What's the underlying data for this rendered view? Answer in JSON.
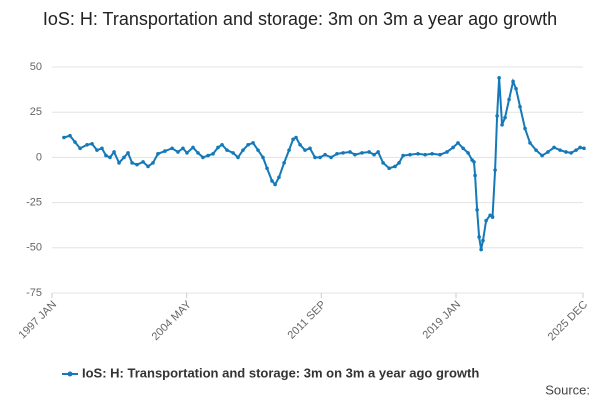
{
  "chart_data": {
    "type": "line",
    "title": "IoS: H: Transportation and storage: 3m on 3m a year ago growth",
    "source": "Source:",
    "x": [
      1997.65,
      1997.98,
      1998.25,
      1998.53,
      1998.91,
      1999.18,
      1999.45,
      1999.72,
      1999.94,
      2000.16,
      2000.38,
      2000.65,
      2000.92,
      2001.14,
      2001.36,
      2001.63,
      2001.96,
      2002.23,
      2002.5,
      2002.77,
      2003.15,
      2003.54,
      2003.86,
      2004.13,
      2004.35,
      2004.68,
      2004.95,
      2005.22,
      2005.5,
      2005.77,
      2006.04,
      2006.26,
      2006.53,
      2006.86,
      2007.13,
      2007.4,
      2007.68,
      2007.95,
      2008.22,
      2008.49,
      2008.71,
      2008.98,
      2009.15,
      2009.36,
      2009.64,
      2009.91,
      2010.13,
      2010.29,
      2010.51,
      2010.78,
      2011.05,
      2011.32,
      2011.6,
      2011.87,
      2012.2,
      2012.52,
      2012.85,
      2013.23,
      2013.5,
      2013.88,
      2014.27,
      2014.54,
      2014.76,
      2015.03,
      2015.36,
      2015.68,
      2015.9,
      2016.12,
      2016.5,
      2016.93,
      2017.32,
      2017.7,
      2018.13,
      2018.51,
      2018.84,
      2019.11,
      2019.39,
      2019.66,
      2019.88,
      2019.98,
      2020.04,
      2020.15,
      2020.26,
      2020.37,
      2020.47,
      2020.64,
      2020.86,
      2020.99,
      2021.13,
      2021.24,
      2021.35,
      2021.51,
      2021.67,
      2021.89,
      2022.11,
      2022.27,
      2022.49,
      2022.76,
      2023.03,
      2023.36,
      2023.69,
      2024.01,
      2024.34,
      2024.67,
      2024.99,
      2025.27,
      2025.54,
      2025.76,
      2025.97
    ],
    "series": [
      {
        "name": "IoS: H: Transportation and storage: 3m on 3m a year ago growth",
        "color": "#1479b8",
        "values": [
          11,
          12,
          8.5,
          5,
          7,
          7.5,
          4,
          5,
          1,
          0,
          3,
          -3,
          0,
          2.5,
          -3,
          -4,
          -2.5,
          -5,
          -3,
          2,
          3.5,
          5,
          3,
          5,
          2.5,
          5.5,
          2.5,
          0,
          1,
          2,
          5.5,
          7,
          4,
          2.5,
          0,
          4,
          7,
          8,
          4,
          0,
          -6,
          -13,
          -15,
          -11,
          -3,
          4,
          10,
          11,
          7,
          4,
          5,
          0,
          0,
          1.5,
          0,
          2,
          2.5,
          3,
          1.5,
          2.5,
          3,
          1.5,
          3,
          -3,
          -6,
          -5,
          -3,
          1,
          1.5,
          2,
          1.5,
          2,
          1.5,
          3,
          5.5,
          8,
          5,
          2.5,
          -1.5,
          -2.5,
          -10,
          -29,
          -44,
          -51,
          -46,
          -35,
          -32,
          -33,
          -7,
          23,
          44,
          18,
          22,
          32,
          42,
          38,
          28,
          16,
          8,
          4,
          1,
          3,
          5.5,
          4,
          3,
          2.5,
          4,
          5.5,
          5
        ]
      }
    ],
    "xlim": [
      1997.0,
      2025.917
    ],
    "xticks": [
      {
        "value": 1997.0,
        "label": "1997 JAN"
      },
      {
        "value": 2004.333,
        "label": "2004 MAY"
      },
      {
        "value": 2011.667,
        "label": "2011 SEP"
      },
      {
        "value": 2019.0,
        "label": "2019 JAN"
      },
      {
        "value": 2025.917,
        "label": "2025 DEC"
      }
    ],
    "ylim": [
      -75,
      50
    ],
    "yticks": [
      50,
      25,
      0,
      -25,
      -50,
      -75
    ],
    "grid": true,
    "legend": "bottom"
  }
}
